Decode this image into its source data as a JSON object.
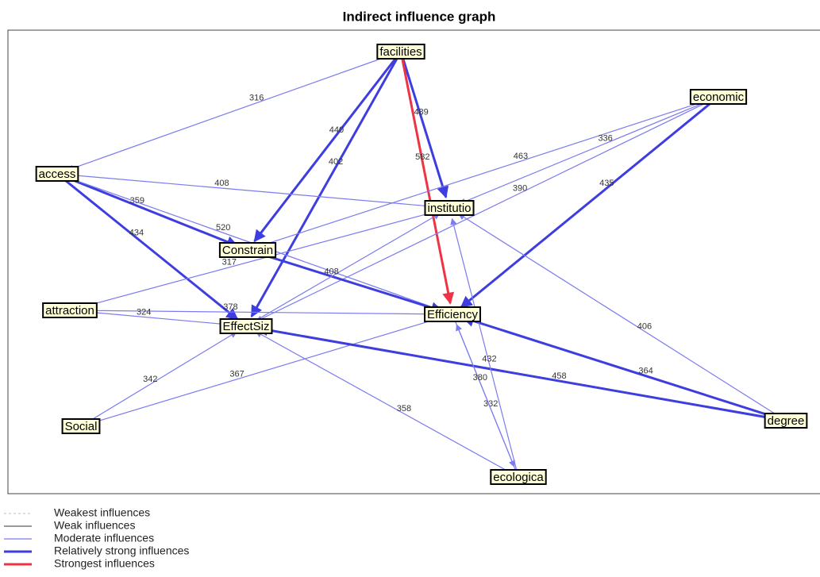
{
  "title": "Indirect influence graph",
  "nodes": [
    {
      "id": "facilities",
      "label": "facilities"
    },
    {
      "id": "economic",
      "label": "economic"
    },
    {
      "id": "access",
      "label": "access"
    },
    {
      "id": "institutio",
      "label": "institutio"
    },
    {
      "id": "Constrain",
      "label": "Constrain"
    },
    {
      "id": "attraction",
      "label": "attraction"
    },
    {
      "id": "Efficiency",
      "label": "Efficiency"
    },
    {
      "id": "EffectSiz",
      "label": "EffectSiz"
    },
    {
      "id": "Social",
      "label": "Social"
    },
    {
      "id": "degree",
      "label": "degree"
    },
    {
      "id": "ecologica",
      "label": "ecologica"
    }
  ],
  "edges": [
    {
      "from": "facilities",
      "to": "access",
      "label": 316,
      "strength": "moderate"
    },
    {
      "from": "facilities",
      "to": "Constrain",
      "label": 440,
      "strength": "strong"
    },
    {
      "from": "facilities",
      "to": "EffectSiz",
      "label": 402,
      "strength": "strong"
    },
    {
      "from": "facilities",
      "to": "institutio",
      "label": 489,
      "strength": "strong"
    },
    {
      "from": "facilities",
      "to": "Efficiency",
      "label": 582,
      "strength": "strongest"
    },
    {
      "from": "economic",
      "to": "Constrain",
      "label": 463,
      "strength": "moderate"
    },
    {
      "from": "economic",
      "to": "institutio",
      "label": 336,
      "strength": "moderate"
    },
    {
      "from": "economic",
      "to": "EffectSiz",
      "label": 390,
      "strength": "moderate"
    },
    {
      "from": "economic",
      "to": "Efficiency",
      "label": 435,
      "strength": "strong"
    },
    {
      "from": "access",
      "to": "institutio",
      "label": 408,
      "strength": "moderate"
    },
    {
      "from": "access",
      "to": "Constrain",
      "label": 359,
      "strength": "strong"
    },
    {
      "from": "access",
      "to": "Efficiency",
      "label": 520,
      "strength": "moderate"
    },
    {
      "from": "access",
      "to": "EffectSiz",
      "label": 434,
      "strength": "strong"
    },
    {
      "from": "attraction",
      "to": "institutio",
      "label": 317,
      "strength": "moderate"
    },
    {
      "from": "attraction",
      "to": "Efficiency",
      "label": 378,
      "strength": "moderate"
    },
    {
      "from": "attraction",
      "to": "EffectSiz",
      "label": 324,
      "strength": "moderate"
    },
    {
      "from": "Social",
      "to": "EffectSiz",
      "label": 342,
      "strength": "moderate"
    },
    {
      "from": "Social",
      "to": "Efficiency",
      "label": 367,
      "strength": "moderate"
    },
    {
      "from": "Constrain",
      "to": "Efficiency",
      "strength": "strong"
    },
    {
      "from": "degree",
      "to": "EffectSiz",
      "label": 458,
      "strength": "strong"
    },
    {
      "from": "degree",
      "to": "Efficiency",
      "label": 364,
      "strength": "strong"
    },
    {
      "from": "degree",
      "to": "institutio",
      "label": 406,
      "strength": "moderate"
    },
    {
      "from": "ecologica",
      "to": "Efficiency",
      "label": 332,
      "strength": "moderate"
    },
    {
      "from": "ecologica",
      "to": "institutio",
      "label": 432,
      "strength": "moderate"
    },
    {
      "from": "ecologica",
      "to": "EffectSiz",
      "label": 358,
      "strength": "moderate"
    },
    {
      "from": "EffectSiz",
      "to": "institutio",
      "label": 408,
      "strength": "moderate"
    },
    {
      "from": "Efficiency",
      "to": "ecologica",
      "label": 380,
      "strength": "moderate"
    }
  ],
  "legend": [
    {
      "label": "Weakest influences",
      "strength": "weakest"
    },
    {
      "label": "Weak influences",
      "strength": "weak"
    },
    {
      "label": "Moderate influences",
      "strength": "moderate"
    },
    {
      "label": "Relatively strong influences",
      "strength": "strong"
    },
    {
      "label": "Strongest influences",
      "strength": "strongest"
    }
  ]
}
